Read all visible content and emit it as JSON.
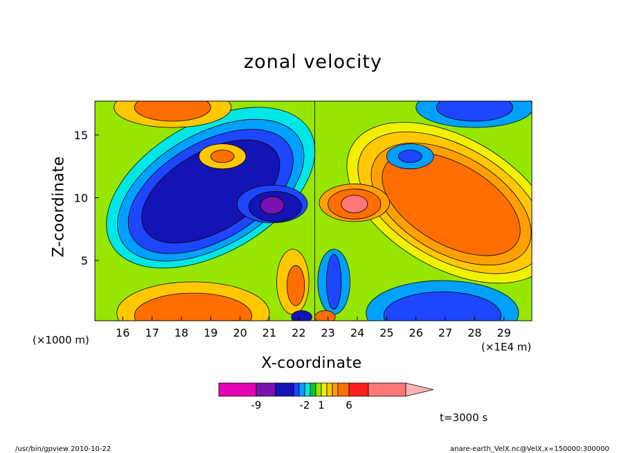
{
  "chart_data": {
    "type": "heatmap",
    "title": "zonal velocity",
    "xlabel": "X-coordinate",
    "ylabel": "Z-coordinate",
    "x_unit_left": "(×1000 m)",
    "x_unit_right": "(×1E4 m)",
    "x_ticks": [
      "16",
      "17",
      "18",
      "19",
      "20",
      "21",
      "22",
      "23",
      "24",
      "25",
      "26",
      "27",
      "28",
      "29"
    ],
    "y_ticks": [
      "5",
      "10",
      "15"
    ],
    "xlim": [
      15.05,
      29.95
    ],
    "ylim": [
      0.2,
      17.7
    ],
    "colorbar": {
      "labels": [
        {
          "text": "-9",
          "value": -9
        },
        {
          "text": "-2",
          "value": -2
        },
        {
          "text": "1",
          "value": 1
        },
        {
          "text": "6",
          "value": 6
        }
      ],
      "levels": [
        -11,
        -9,
        -7,
        -4,
        -3,
        -2,
        -1,
        0,
        1,
        2,
        3,
        4,
        6,
        8,
        11,
        14
      ],
      "colors": [
        "#e400b4",
        "#7a12b0",
        "#1414b4",
        "#1e46ff",
        "#00a0ff",
        "#00e6e6",
        "#00c832",
        "#96e600",
        "#f0f000",
        "#ffc800",
        "#ffa000",
        "#ff6e00",
        "#ff1e1e",
        "#ff7878",
        "#ffb4b4"
      ]
    },
    "time_label": "t=3000 s",
    "features": [
      {
        "label": "negative lobe",
        "x": 19.0,
        "z": 10.5,
        "value": -5
      },
      {
        "label": "positive lobe",
        "x": 27.2,
        "z": 9.5,
        "value": 5
      },
      {
        "label": "negative core",
        "x": 21.2,
        "z": 9.3,
        "value": -9
      },
      {
        "label": "positive core",
        "x": 23.9,
        "z": 9.4,
        "value": 8
      },
      {
        "label": "near-bottom positive",
        "x": 18.4,
        "z": 1.0,
        "value": 4
      },
      {
        "label": "near-bottom negative",
        "x": 26.9,
        "z": 1.0,
        "value": -4
      },
      {
        "label": "upper positive",
        "x": 17.6,
        "z": 16.6,
        "value": 4
      },
      {
        "label": "upper negative",
        "x": 27.9,
        "z": 16.7,
        "value": -4
      }
    ]
  },
  "footer": {
    "left": "/usr/bin/gpview   2010-10-22",
    "right": "anare-earth_VelX.nc@VelX,x=150000:300000"
  }
}
